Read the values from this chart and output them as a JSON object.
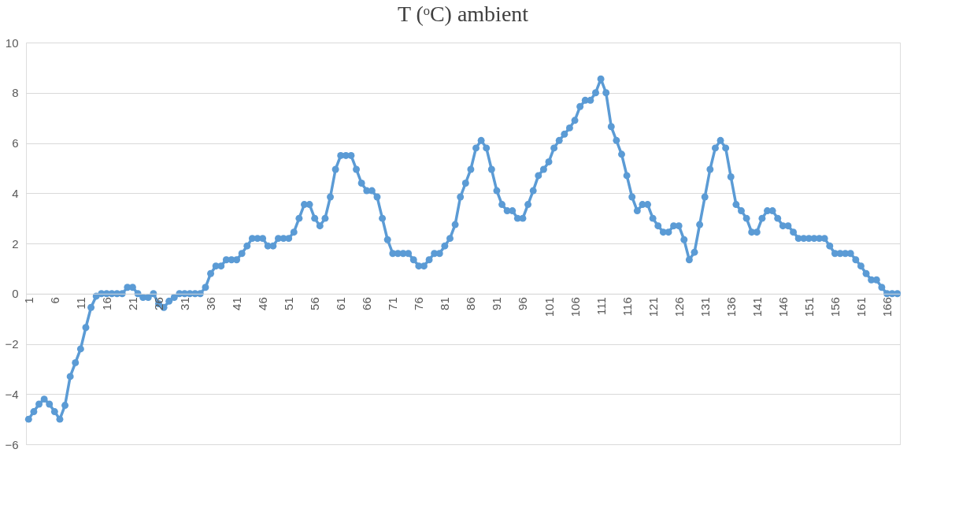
{
  "chart_data": {
    "type": "line",
    "title": "T (ᵒC) ambient",
    "categories": [
      "1",
      null,
      null,
      null,
      null,
      "6",
      null,
      null,
      null,
      null,
      "11",
      null,
      null,
      null,
      null,
      "16",
      null,
      null,
      null,
      null,
      "21",
      null,
      null,
      null,
      null,
      "26",
      null,
      null,
      null,
      null,
      "31",
      null,
      null,
      null,
      null,
      "36",
      null,
      null,
      null,
      null,
      "41",
      null,
      null,
      null,
      null,
      "46",
      null,
      null,
      null,
      null,
      "51",
      null,
      null,
      null,
      null,
      "56",
      null,
      null,
      null,
      null,
      "61",
      null,
      null,
      null,
      null,
      "66",
      null,
      null,
      null,
      null,
      "71",
      null,
      null,
      null,
      null,
      "76",
      null,
      null,
      null,
      null,
      "81",
      null,
      null,
      null,
      null,
      "86",
      null,
      null,
      null,
      null,
      "91",
      null,
      null,
      null,
      null,
      "96",
      null,
      null,
      null,
      null,
      "101",
      null,
      null,
      null,
      null,
      "106",
      null,
      null,
      null,
      null,
      "111",
      null,
      null,
      null,
      null,
      "116",
      null,
      null,
      null,
      null,
      "121",
      null,
      null,
      null,
      null,
      "126",
      null,
      null,
      null,
      null,
      "131",
      null,
      null,
      null,
      null,
      "136",
      null,
      null,
      null,
      null,
      "141",
      null,
      null,
      null,
      null,
      "146",
      null,
      null,
      null,
      null,
      "151",
      null,
      null,
      null,
      null,
      "156",
      null,
      null,
      null,
      null,
      "161",
      null,
      null,
      null,
      null,
      "166",
      null,
      null
    ],
    "series": [
      {
        "color": "#5b9bd5",
        "values": [
          -5.0,
          -4.7,
          -4.4,
          -4.2,
          -4.4,
          -4.7,
          -5.0,
          -4.45,
          -3.3,
          -2.75,
          -2.2,
          -1.35,
          -0.55,
          -0.1,
          0,
          0,
          0,
          0,
          0,
          0.25,
          0.25,
          0,
          -0.15,
          -0.15,
          0,
          -0.4,
          -0.55,
          -0.3,
          -0.15,
          0,
          0,
          0,
          0,
          0,
          0.25,
          0.8,
          1.1,
          1.1,
          1.35,
          1.35,
          1.35,
          1.6,
          1.9,
          2.2,
          2.2,
          2.2,
          1.9,
          1.9,
          2.2,
          2.2,
          2.2,
          2.45,
          3.0,
          3.55,
          3.55,
          3.0,
          2.7,
          3.0,
          3.85,
          4.95,
          5.5,
          5.5,
          5.5,
          4.95,
          4.4,
          4.1,
          4.1,
          3.85,
          3.0,
          2.15,
          1.6,
          1.6,
          1.6,
          1.6,
          1.35,
          1.1,
          1.1,
          1.35,
          1.6,
          1.6,
          1.9,
          2.2,
          2.75,
          3.85,
          4.4,
          4.95,
          5.8,
          6.1,
          5.8,
          4.95,
          4.1,
          3.55,
          3.3,
          3.3,
          3.0,
          3.0,
          3.55,
          4.1,
          4.7,
          4.95,
          5.25,
          5.8,
          6.1,
          6.35,
          6.6,
          6.9,
          7.45,
          7.7,
          7.7,
          8.0,
          8.55,
          8.0,
          6.65,
          6.1,
          5.55,
          4.7,
          3.85,
          3.3,
          3.55,
          3.55,
          3.0,
          2.7,
          2.45,
          2.45,
          2.7,
          2.7,
          2.15,
          1.35,
          1.65,
          2.75,
          3.85,
          4.95,
          5.8,
          6.1,
          5.8,
          4.65,
          3.55,
          3.3,
          3.0,
          2.45,
          2.45,
          3.0,
          3.3,
          3.3,
          3.0,
          2.7,
          2.7,
          2.45,
          2.2,
          2.2,
          2.2,
          2.2,
          2.2,
          2.2,
          1.9,
          1.6,
          1.6,
          1.6,
          1.6,
          1.35,
          1.1,
          0.8,
          0.55,
          0.55,
          0.25,
          0,
          0,
          0
        ]
      }
    ],
    "ylim": [
      -6,
      10
    ],
    "yticks": [
      -6,
      -4,
      -2,
      0,
      2,
      4,
      6,
      8,
      10
    ],
    "grid": "y",
    "marker": "circle",
    "line_style": "solid"
  }
}
